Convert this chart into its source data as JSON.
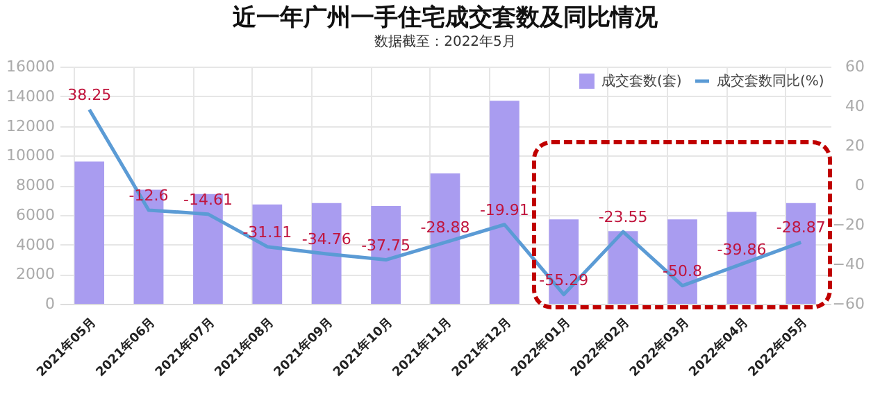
{
  "chart_data": {
    "type": "bar",
    "title": "近一年广州一手住宅成交套数及同比情况",
    "subtitle": "数据截至：2022年5月",
    "categories": [
      "2021年05月",
      "2021年06月",
      "2021年07月",
      "2021年08月",
      "2021年09月",
      "2021年10月",
      "2021年11月",
      "2021年12月",
      "2022年01月",
      "2022年02月",
      "2022年03月",
      "2022年04月",
      "2022年05月"
    ],
    "series": [
      {
        "name": "成交套数(套)",
        "color": "#a99cf0",
        "values": [
          9600,
          7700,
          7400,
          6700,
          6800,
          6600,
          8800,
          13700,
          5700,
          4900,
          5700,
          6200,
          6800
        ]
      },
      {
        "name": "成交套数同比(%)",
        "type": "line",
        "axis": "y2",
        "color": "#5b9bd5",
        "values": [
          38.25,
          -12.6,
          -14.61,
          -31.11,
          -34.76,
          -37.75,
          -28.88,
          -19.91,
          -55.29,
          -23.55,
          -50.8,
          -39.86,
          -28.87
        ],
        "value_labels": [
          "38.25",
          "-12.6",
          "-14.61",
          "-31.11",
          "-34.76",
          "-37.75",
          "-28.88",
          "-19.91",
          "-55.29",
          "-23.55",
          "-50.8",
          "-39.86",
          "-28.87"
        ]
      }
    ],
    "ylim": [
      0,
      16000
    ],
    "yticks": [
      0,
      2000,
      4000,
      6000,
      8000,
      10000,
      12000,
      14000,
      16000
    ],
    "y2lim": [
      -60,
      60
    ],
    "y2ticks": [
      -60,
      -40,
      -20,
      0,
      20,
      40,
      60
    ],
    "grid": true,
    "legend": "top right"
  }
}
